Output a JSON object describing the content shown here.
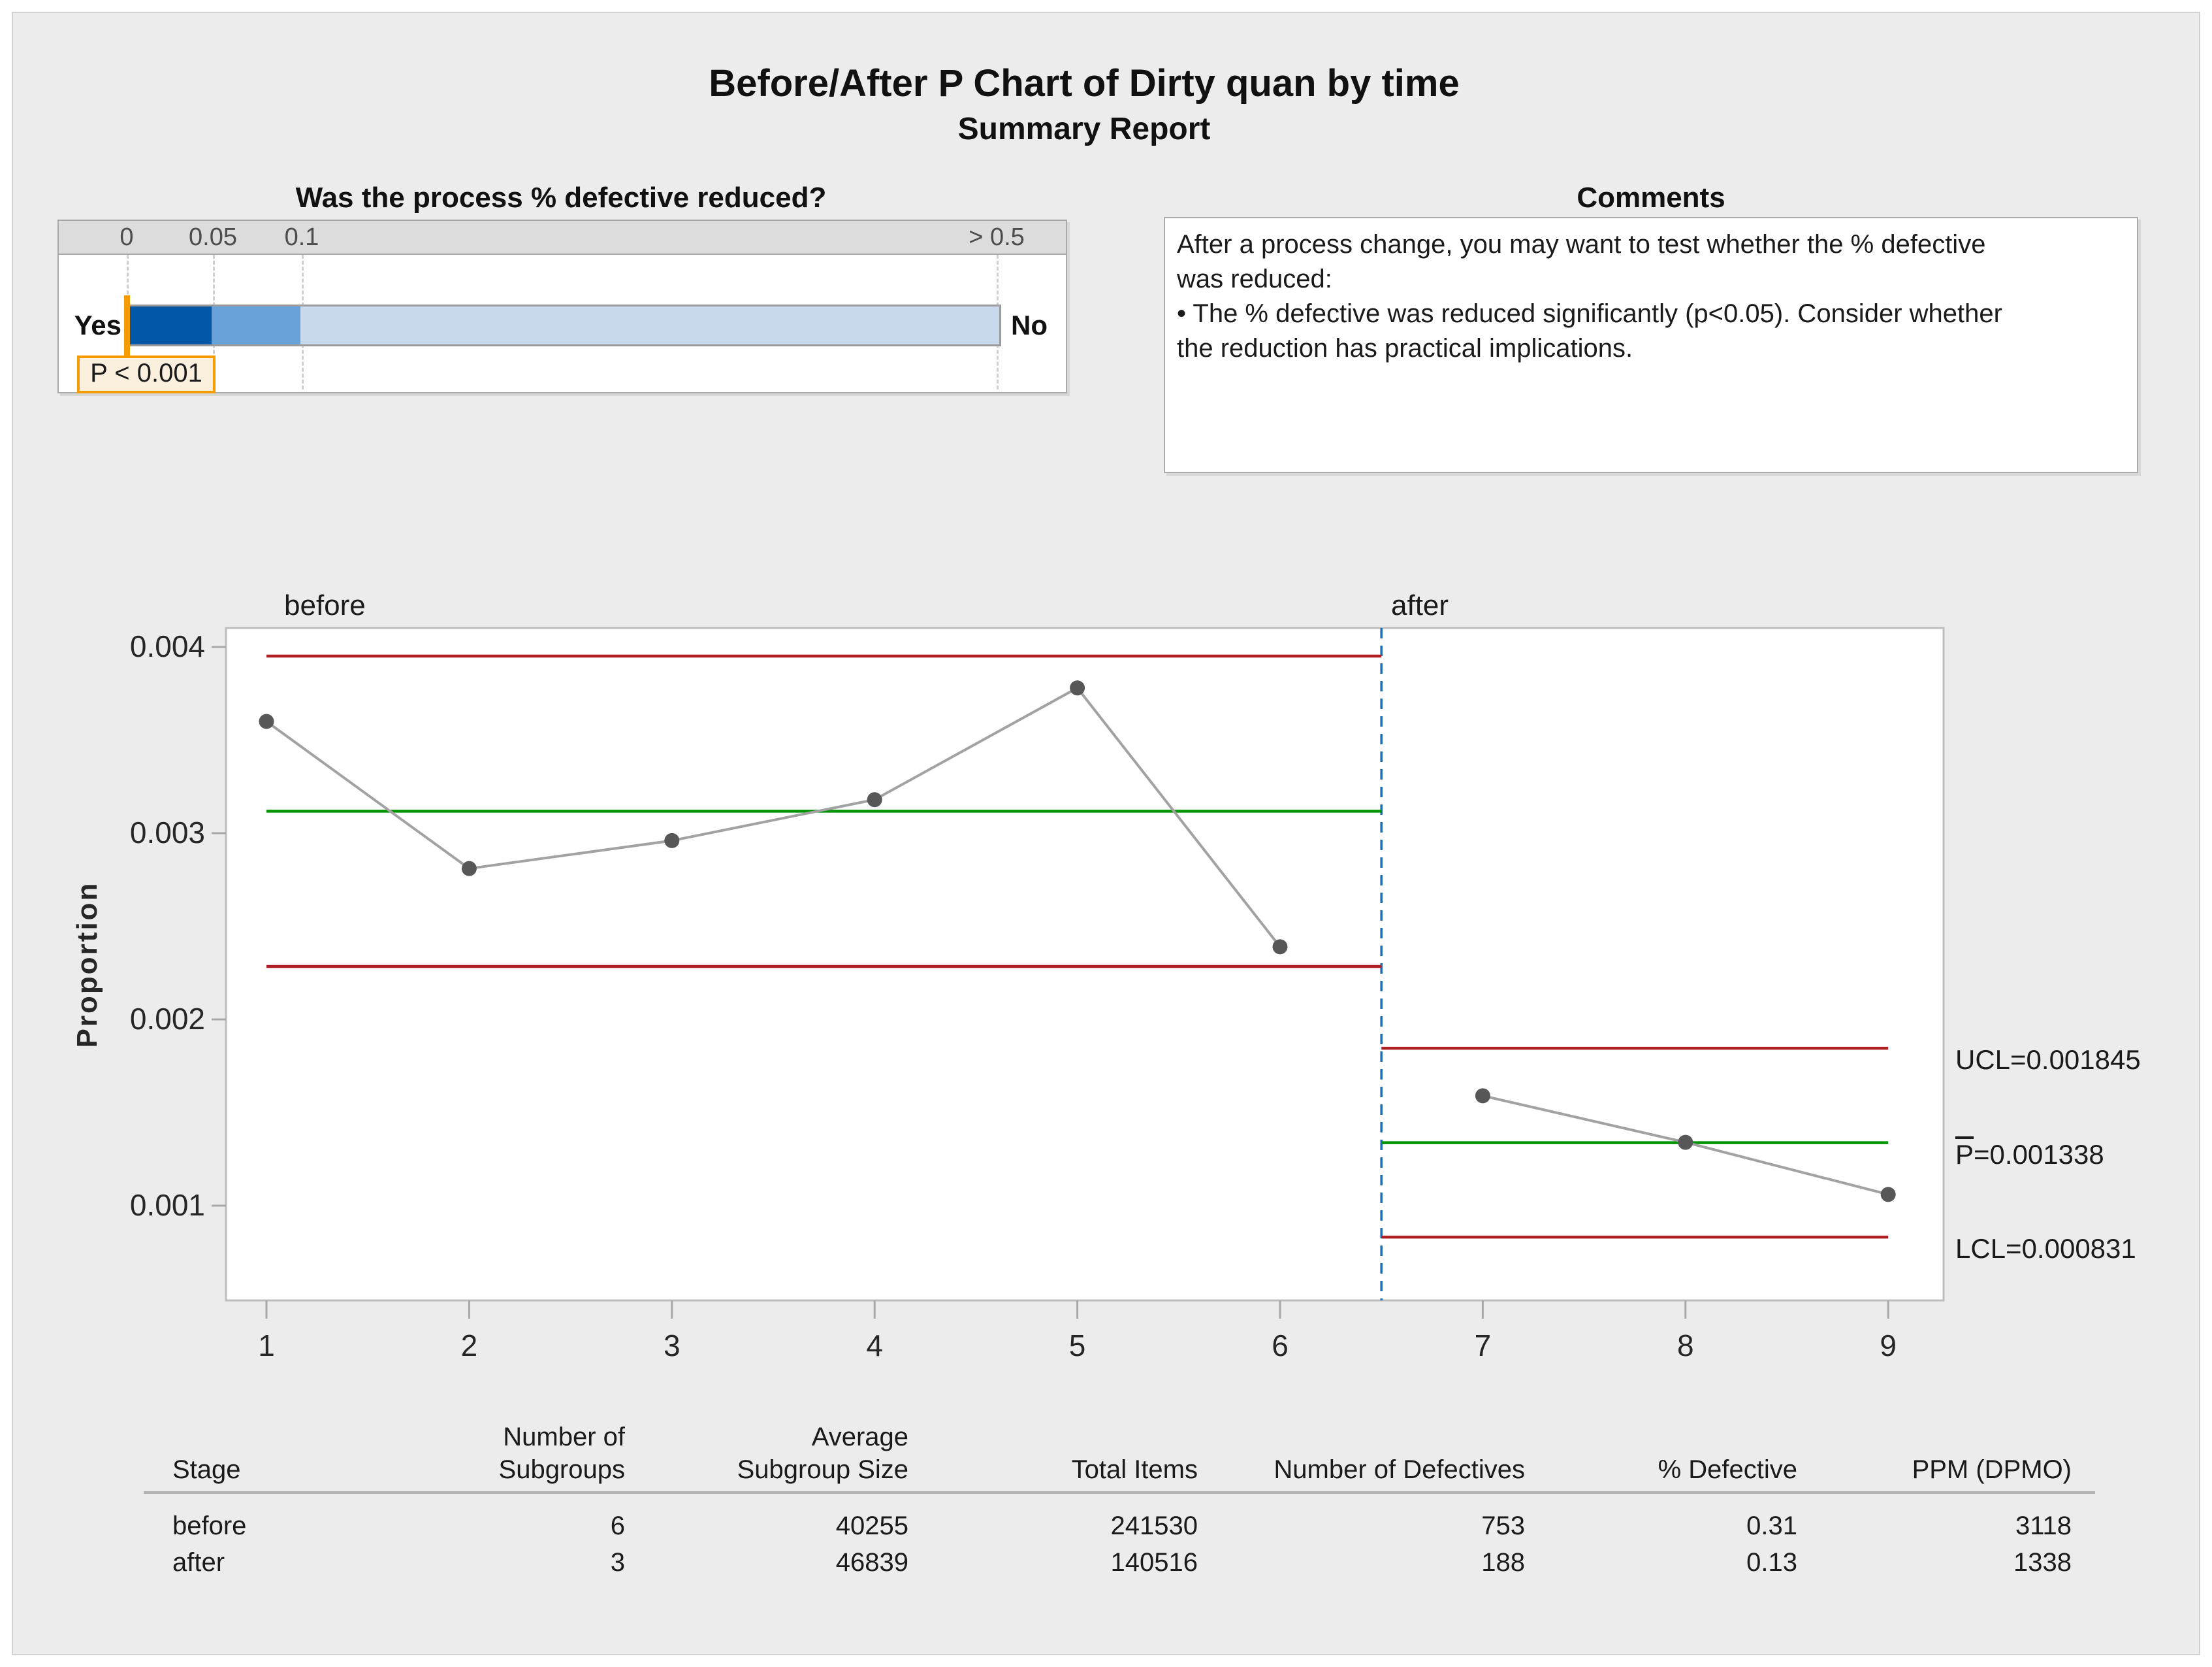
{
  "report": {
    "title": "Before/After P Chart of Dirty quan by time",
    "subtitle": "Summary Report"
  },
  "gauge": {
    "question": "Was the process % defective reduced?",
    "scale_labels": [
      "0",
      "0.05",
      "0.1",
      "> 0.5"
    ],
    "left_label": "Yes",
    "right_label": "No",
    "p_value_label": "P < 0.001",
    "colors": {
      "segment_dark": "#0057a7",
      "segment_mid": "#68a2d9",
      "segment_light": "#c8d9ee",
      "marker_line": "#f79c00",
      "pbox_fill": "#fbf0de",
      "pbox_border": "#f79c00"
    }
  },
  "comments": {
    "title": "Comments",
    "lines": [
      "After a process change, you may want to test whether the % defective",
      "was reduced:",
      "• The % defective was reduced significantly (p<0.05). Consider whether",
      "the reduction has practical implications."
    ]
  },
  "chart_data": {
    "type": "line",
    "ylabel": "Proportion",
    "x": [
      1,
      2,
      3,
      4,
      5,
      6,
      7,
      8,
      9
    ],
    "series": [
      {
        "name": "Proportion",
        "values": [
          0.0036,
          0.00281,
          0.00296,
          0.00318,
          0.00378,
          0.00239,
          0.00159,
          0.00134,
          0.00106
        ]
      }
    ],
    "stages": [
      {
        "label": "before",
        "x_start": 1,
        "x_end": 6,
        "ucl": 0.003951,
        "center": 0.003118,
        "lcl": 0.002284
      },
      {
        "label": "after",
        "x_start": 7,
        "x_end": 9,
        "ucl": 0.001845,
        "center": 0.001338,
        "lcl": 0.000831
      }
    ],
    "stage_boundary_x": 6.5,
    "yticks": [
      0.001,
      0.002,
      0.003,
      0.004
    ],
    "ylim": [
      0.000491,
      0.004102
    ],
    "grid": false,
    "legend_position": "none",
    "annotations": {
      "ucl": "UCL=0.001845",
      "center_prefix": "P",
      "center_value": "=0.001338",
      "lcl": "LCL=0.000831"
    },
    "colors": {
      "control_limit": "#b01f24",
      "center_line": "#009400",
      "data_line": "#a2a2a2",
      "marker": "#575757",
      "stage_divider": "#1f6cb4",
      "plot_border": "#bdbdbd",
      "tick": "#a8a8a8"
    }
  },
  "table": {
    "columns": [
      {
        "header": "Stage"
      },
      {
        "header": "Number of\nSubgroups"
      },
      {
        "header": "Average\nSubgroup Size"
      },
      {
        "header": "Total Items"
      },
      {
        "header": "Number of Defectives"
      },
      {
        "header": "% Defective"
      },
      {
        "header": "PPM (DPMO)"
      }
    ],
    "rows": [
      [
        "before",
        "6",
        "40255",
        "241530",
        "753",
        "0.31",
        "3118"
      ],
      [
        "after",
        "3",
        "46839",
        "140516",
        "188",
        "0.13",
        "1338"
      ]
    ]
  }
}
